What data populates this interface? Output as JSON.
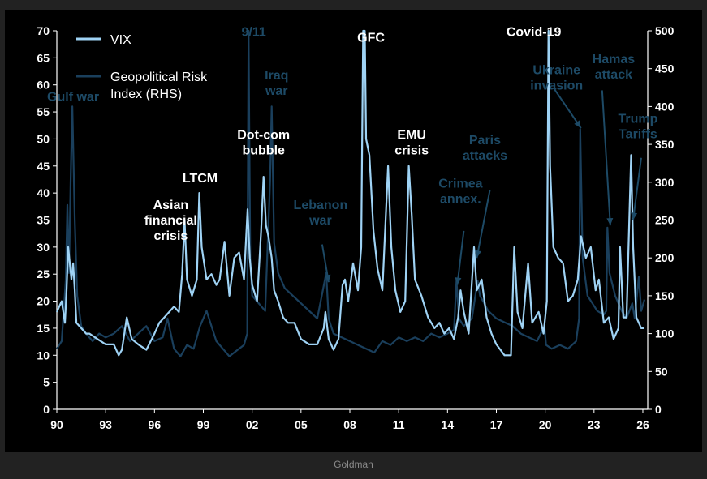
{
  "source": "Goldman",
  "chart_data": {
    "type": "line",
    "x_ticks": [
      "90",
      "93",
      "96",
      "99",
      "02",
      "05",
      "08",
      "11",
      "14",
      "17",
      "20",
      "23",
      "26"
    ],
    "left_axis": {
      "ticks": [
        0,
        5,
        10,
        15,
        20,
        25,
        30,
        35,
        40,
        45,
        50,
        55,
        60,
        65,
        70
      ],
      "ylim": [
        0,
        70
      ]
    },
    "right_axis": {
      "ticks": [
        0,
        50,
        100,
        150,
        200,
        250,
        300,
        350,
        400,
        450,
        500
      ],
      "ylim": [
        0,
        500
      ]
    },
    "xlim": [
      1990,
      2026.3
    ],
    "colors": {
      "vix": "#9fd3f5",
      "gpr": "#1a3f5c",
      "label_blue": "#1d4a66"
    },
    "legend": [
      {
        "label": "VIX",
        "color": "#9fd3f5"
      },
      {
        "label": "Geopolitical Risk Index (RHS)",
        "label_lines": [
          "Geopolitical Risk",
          "Index (RHS)"
        ],
        "color": "#1a3f5c"
      }
    ],
    "annotations": [
      {
        "lines": [
          "Gulf  war"
        ],
        "x": 1991.0,
        "y": 57,
        "color": "blue"
      },
      {
        "lines": [
          "Asian",
          "financial",
          "crisis"
        ],
        "x": 1997.0,
        "y": 37,
        "color": "white"
      },
      {
        "lines": [
          "LTCM"
        ],
        "x": 1998.8,
        "y": 42,
        "color": "white"
      },
      {
        "lines": [
          "Dot-com",
          "bubble"
        ],
        "x": 2002.7,
        "y": 50,
        "color": "white"
      },
      {
        "lines": [
          "9/11"
        ],
        "x": 2002.1,
        "y": 69,
        "color": "blue"
      },
      {
        "lines": [
          "Iraq",
          "war"
        ],
        "x": 2003.5,
        "y": 61,
        "color": "blue"
      },
      {
        "lines": [
          "Lebanon",
          "war"
        ],
        "x": 2006.2,
        "y": 37,
        "color": "blue"
      },
      {
        "lines": [
          "GFC"
        ],
        "x": 2009.3,
        "y": 68,
        "color": "white"
      },
      {
        "lines": [
          "EMU",
          "crisis"
        ],
        "x": 2011.8,
        "y": 50,
        "color": "white"
      },
      {
        "lines": [
          "Crimea",
          "annex."
        ],
        "x": 2014.8,
        "y": 41,
        "color": "blue"
      },
      {
        "lines": [
          "Paris",
          "attacks"
        ],
        "x": 2016.3,
        "y": 49,
        "color": "blue"
      },
      {
        "lines": [
          "Covid-19"
        ],
        "x": 2019.3,
        "y": 69,
        "color": "white"
      },
      {
        "lines": [
          "Ukraine",
          "invasion"
        ],
        "x": 2020.7,
        "y": 62,
        "color": "blue"
      },
      {
        "lines": [
          "Hamas",
          "attack"
        ],
        "x": 2024.2,
        "y": 64,
        "color": "blue"
      },
      {
        "lines": [
          "Trump",
          "Tariffs"
        ],
        "x": 2025.7,
        "y": 53,
        "color": "blue"
      }
    ],
    "arrows": [
      {
        "from": [
          2006.3,
          30.5
        ],
        "to": [
          2006.7,
          23.5
        ]
      },
      {
        "from": [
          2015.0,
          33.0
        ],
        "to": [
          2014.6,
          23.0
        ]
      },
      {
        "from": [
          2016.6,
          40.5
        ],
        "to": [
          2015.8,
          28.0
        ]
      },
      {
        "from": [
          2020.5,
          59.5
        ],
        "to": [
          2022.2,
          52.0
        ]
      },
      {
        "from": [
          2023.5,
          59.0
        ],
        "to": [
          2024.0,
          34.0
        ]
      },
      {
        "from": [
          2025.9,
          46.5
        ],
        "to": [
          2025.4,
          35.0
        ]
      }
    ],
    "series": [
      {
        "name": "VIX",
        "axis": "left",
        "points": [
          [
            1990.0,
            18
          ],
          [
            1990.3,
            20
          ],
          [
            1990.5,
            16
          ],
          [
            1990.6,
            22
          ],
          [
            1990.7,
            30
          ],
          [
            1990.8,
            27
          ],
          [
            1990.9,
            24
          ],
          [
            1991.0,
            27
          ],
          [
            1991.1,
            22
          ],
          [
            1991.2,
            16
          ],
          [
            1991.5,
            15
          ],
          [
            1991.8,
            14
          ],
          [
            1992.0,
            14
          ],
          [
            1992.5,
            13
          ],
          [
            1993.0,
            12
          ],
          [
            1993.5,
            12
          ],
          [
            1993.8,
            10
          ],
          [
            1994.0,
            11
          ],
          [
            1994.3,
            17
          ],
          [
            1994.6,
            13
          ],
          [
            1995.0,
            12
          ],
          [
            1995.5,
            11
          ],
          [
            1996.0,
            14
          ],
          [
            1996.3,
            16
          ],
          [
            1996.6,
            17
          ],
          [
            1996.9,
            18
          ],
          [
            1997.2,
            19
          ],
          [
            1997.5,
            18
          ],
          [
            1997.7,
            25
          ],
          [
            1997.85,
            35
          ],
          [
            1998.0,
            24
          ],
          [
            1998.3,
            21
          ],
          [
            1998.6,
            24
          ],
          [
            1998.75,
            40
          ],
          [
            1998.9,
            30
          ],
          [
            1999.2,
            24
          ],
          [
            1999.5,
            25
          ],
          [
            1999.8,
            23
          ],
          [
            2000.0,
            24
          ],
          [
            2000.3,
            31
          ],
          [
            2000.6,
            21
          ],
          [
            2000.9,
            28
          ],
          [
            2001.2,
            29
          ],
          [
            2001.5,
            24
          ],
          [
            2001.72,
            37
          ],
          [
            2001.85,
            28
          ],
          [
            2002.0,
            23
          ],
          [
            2002.3,
            20
          ],
          [
            2002.55,
            33
          ],
          [
            2002.7,
            43
          ],
          [
            2002.85,
            34
          ],
          [
            2003.0,
            32
          ],
          [
            2003.2,
            28
          ],
          [
            2003.35,
            22
          ],
          [
            2003.6,
            20
          ],
          [
            2003.9,
            17
          ],
          [
            2004.2,
            16
          ],
          [
            2004.6,
            16
          ],
          [
            2005.0,
            13
          ],
          [
            2005.5,
            12
          ],
          [
            2006.0,
            12
          ],
          [
            2006.4,
            15
          ],
          [
            2006.5,
            18
          ],
          [
            2006.7,
            13
          ],
          [
            2007.0,
            11
          ],
          [
            2007.3,
            13
          ],
          [
            2007.55,
            23
          ],
          [
            2007.7,
            24
          ],
          [
            2007.9,
            20
          ],
          [
            2008.2,
            27
          ],
          [
            2008.5,
            22
          ],
          [
            2008.7,
            30
          ],
          [
            2008.82,
            70
          ],
          [
            2008.92,
            70
          ],
          [
            2009.0,
            50
          ],
          [
            2009.2,
            47
          ],
          [
            2009.45,
            33
          ],
          [
            2009.7,
            26
          ],
          [
            2010.0,
            22
          ],
          [
            2010.35,
            45
          ],
          [
            2010.55,
            30
          ],
          [
            2010.8,
            22
          ],
          [
            2011.1,
            18
          ],
          [
            2011.4,
            20
          ],
          [
            2011.62,
            45
          ],
          [
            2011.8,
            36
          ],
          [
            2012.0,
            24
          ],
          [
            2012.4,
            21
          ],
          [
            2012.8,
            17
          ],
          [
            2013.2,
            15
          ],
          [
            2013.5,
            16
          ],
          [
            2013.8,
            14
          ],
          [
            2014.1,
            15
          ],
          [
            2014.4,
            13
          ],
          [
            2014.65,
            17
          ],
          [
            2014.8,
            22
          ],
          [
            2015.0,
            18
          ],
          [
            2015.3,
            14
          ],
          [
            2015.63,
            30
          ],
          [
            2015.8,
            22
          ],
          [
            2016.1,
            24
          ],
          [
            2016.4,
            17
          ],
          [
            2016.7,
            14
          ],
          [
            2017.0,
            12
          ],
          [
            2017.5,
            10
          ],
          [
            2017.9,
            10
          ],
          [
            2018.1,
            30
          ],
          [
            2018.3,
            18
          ],
          [
            2018.6,
            15
          ],
          [
            2018.95,
            27
          ],
          [
            2019.2,
            16
          ],
          [
            2019.6,
            18
          ],
          [
            2019.9,
            14
          ],
          [
            2020.1,
            20
          ],
          [
            2020.2,
            70
          ],
          [
            2020.3,
            45
          ],
          [
            2020.5,
            30
          ],
          [
            2020.8,
            28
          ],
          [
            2021.1,
            27
          ],
          [
            2021.4,
            20
          ],
          [
            2021.7,
            21
          ],
          [
            2022.0,
            24
          ],
          [
            2022.2,
            32
          ],
          [
            2022.5,
            28
          ],
          [
            2022.8,
            30
          ],
          [
            2023.1,
            22
          ],
          [
            2023.3,
            24
          ],
          [
            2023.6,
            16
          ],
          [
            2023.9,
            17
          ],
          [
            2024.2,
            13
          ],
          [
            2024.5,
            15
          ],
          [
            2024.6,
            30
          ],
          [
            2024.8,
            17
          ],
          [
            2025.0,
            17
          ],
          [
            2025.28,
            47
          ],
          [
            2025.4,
            30
          ],
          [
            2025.6,
            17
          ],
          [
            2025.9,
            15
          ],
          [
            2026.1,
            15
          ]
        ]
      },
      {
        "name": "Geopolitical Risk Index (RHS)",
        "axis": "right",
        "points": [
          [
            1990.0,
            80
          ],
          [
            1990.3,
            90
          ],
          [
            1990.55,
            170
          ],
          [
            1990.65,
            270
          ],
          [
            1990.75,
            180
          ],
          [
            1990.85,
            300
          ],
          [
            1990.95,
            400
          ],
          [
            1991.1,
            250
          ],
          [
            1991.25,
            150
          ],
          [
            1991.5,
            110
          ],
          [
            1991.8,
            100
          ],
          [
            1992.2,
            90
          ],
          [
            1992.6,
            100
          ],
          [
            1993.0,
            95
          ],
          [
            1993.5,
            100
          ],
          [
            1994.0,
            110
          ],
          [
            1994.5,
            90
          ],
          [
            1995.0,
            100
          ],
          [
            1995.5,
            110
          ],
          [
            1996.0,
            90
          ],
          [
            1996.5,
            95
          ],
          [
            1996.8,
            120
          ],
          [
            1997.2,
            80
          ],
          [
            1997.6,
            70
          ],
          [
            1998.0,
            85
          ],
          [
            1998.4,
            80
          ],
          [
            1998.8,
            110
          ],
          [
            1999.2,
            130
          ],
          [
            1999.5,
            110
          ],
          [
            1999.8,
            90
          ],
          [
            2000.2,
            80
          ],
          [
            2000.6,
            70
          ],
          [
            2000.9,
            75
          ],
          [
            2001.2,
            80
          ],
          [
            2001.5,
            85
          ],
          [
            2001.7,
            100
          ],
          [
            2001.78,
            500
          ],
          [
            2001.88,
            200
          ],
          [
            2002.0,
            150
          ],
          [
            2002.4,
            140
          ],
          [
            2002.8,
            130
          ],
          [
            2003.1,
            300
          ],
          [
            2003.2,
            400
          ],
          [
            2003.35,
            220
          ],
          [
            2003.6,
            180
          ],
          [
            2004.0,
            160
          ],
          [
            2004.5,
            150
          ],
          [
            2005.0,
            140
          ],
          [
            2005.5,
            130
          ],
          [
            2006.0,
            120
          ],
          [
            2006.55,
            180
          ],
          [
            2006.7,
            120
          ],
          [
            2007.0,
            100
          ],
          [
            2007.5,
            95
          ],
          [
            2008.0,
            90
          ],
          [
            2008.5,
            85
          ],
          [
            2009.0,
            80
          ],
          [
            2009.5,
            75
          ],
          [
            2010.0,
            90
          ],
          [
            2010.5,
            85
          ],
          [
            2011.0,
            95
          ],
          [
            2011.5,
            90
          ],
          [
            2012.0,
            95
          ],
          [
            2012.5,
            90
          ],
          [
            2013.0,
            100
          ],
          [
            2013.5,
            95
          ],
          [
            2014.0,
            100
          ],
          [
            2014.4,
            105
          ],
          [
            2014.55,
            170
          ],
          [
            2014.7,
            120
          ],
          [
            2015.0,
            110
          ],
          [
            2015.5,
            120
          ],
          [
            2015.85,
            170
          ],
          [
            2016.0,
            150
          ],
          [
            2016.5,
            130
          ],
          [
            2017.0,
            120
          ],
          [
            2017.5,
            115
          ],
          [
            2018.0,
            110
          ],
          [
            2018.5,
            100
          ],
          [
            2019.0,
            95
          ],
          [
            2019.5,
            90
          ],
          [
            2019.95,
            110
          ],
          [
            2020.05,
            85
          ],
          [
            2020.4,
            80
          ],
          [
            2020.9,
            85
          ],
          [
            2021.4,
            80
          ],
          [
            2021.9,
            90
          ],
          [
            2022.08,
            120
          ],
          [
            2022.15,
            370
          ],
          [
            2022.3,
            200
          ],
          [
            2022.6,
            150
          ],
          [
            2022.9,
            140
          ],
          [
            2023.2,
            130
          ],
          [
            2023.6,
            125
          ],
          [
            2023.75,
            130
          ],
          [
            2023.82,
            240
          ],
          [
            2023.95,
            180
          ],
          [
            2024.3,
            150
          ],
          [
            2024.7,
            130
          ],
          [
            2025.0,
            120
          ],
          [
            2025.35,
            140
          ],
          [
            2025.5,
            120
          ],
          [
            2025.75,
            175
          ],
          [
            2025.9,
            130
          ],
          [
            2026.1,
            145
          ]
        ]
      }
    ]
  }
}
